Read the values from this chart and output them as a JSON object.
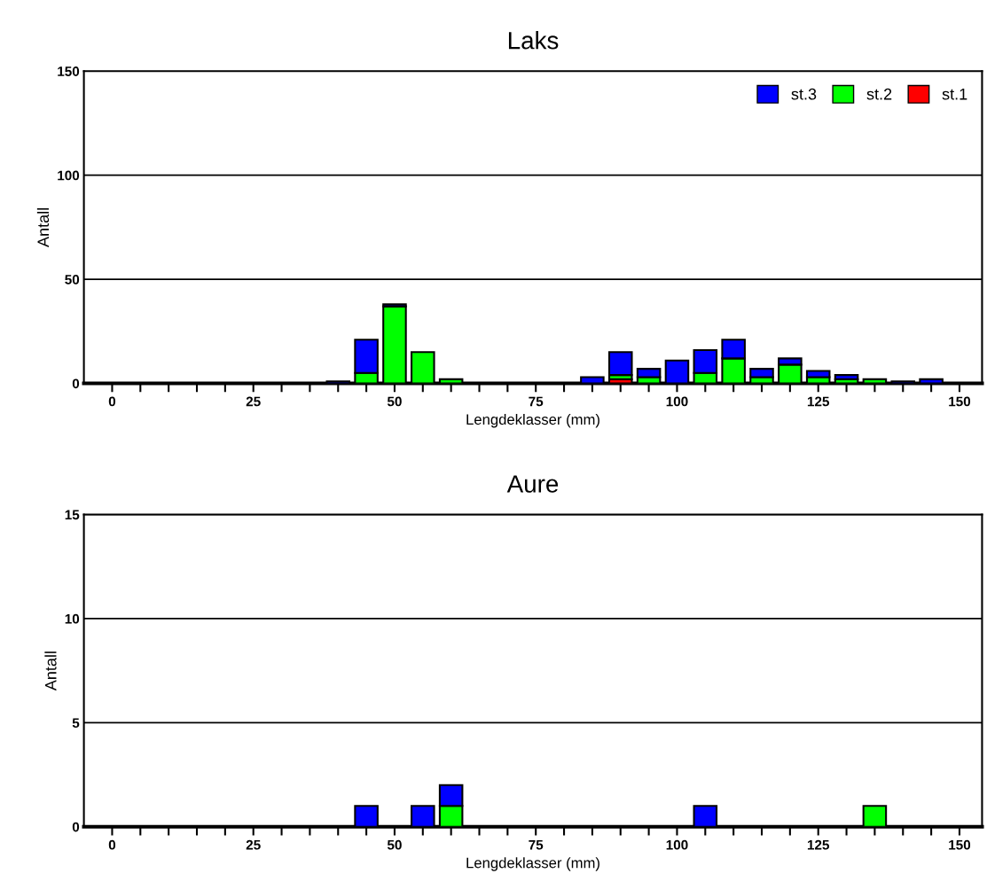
{
  "chart_data": [
    {
      "type": "bar",
      "title": "Laks",
      "xlabel": "Lengdeklasser (mm)",
      "ylabel": "Antall",
      "stacked": true,
      "x": [
        40,
        45,
        50,
        55,
        60,
        85,
        90,
        95,
        100,
        105,
        110,
        115,
        120,
        125,
        130,
        135,
        140,
        145
      ],
      "series": [
        {
          "name": "st.1",
          "color": "#ff0000",
          "values": [
            null,
            null,
            null,
            null,
            null,
            null,
            2,
            null,
            null,
            null,
            null,
            null,
            null,
            null,
            null,
            null,
            null,
            null
          ]
        },
        {
          "name": "st.2",
          "color": "#00ff00",
          "values": [
            null,
            5,
            37,
            15,
            2,
            null,
            2,
            3,
            null,
            5,
            12,
            3,
            9,
            3,
            2,
            2,
            null,
            null
          ]
        },
        {
          "name": "st.3",
          "color": "#0000ff",
          "values": [
            1,
            16,
            1,
            null,
            null,
            3,
            11,
            4,
            11,
            11,
            9,
            4,
            3,
            3,
            2,
            null,
            1,
            2
          ]
        }
      ],
      "xlim": [
        -5,
        154
      ],
      "ylim": [
        0,
        150
      ],
      "yticks": [
        0,
        50,
        100,
        150
      ],
      "xticks": [
        0,
        {
          "value": 5,
          "label": null
        },
        {
          "value": 10,
          "label": null
        },
        {
          "value": 15,
          "label": null
        },
        {
          "value": 20,
          "label": null
        },
        25,
        {
          "value": 30,
          "label": null
        },
        {
          "value": 35,
          "label": null
        },
        {
          "value": 40,
          "label": null
        },
        {
          "value": 45,
          "label": null
        },
        50,
        {
          "value": 55,
          "label": null
        },
        {
          "value": 60,
          "label": null
        },
        {
          "value": 65,
          "label": null
        },
        {
          "value": 70,
          "label": null
        },
        75,
        {
          "value": 80,
          "label": null
        },
        {
          "value": 85,
          "label": null
        },
        {
          "value": 90,
          "label": null
        },
        {
          "value": 95,
          "label": null
        },
        100,
        {
          "value": 105,
          "label": null
        },
        {
          "value": 110,
          "label": null
        },
        {
          "value": 115,
          "label": null
        },
        {
          "value": 120,
          "label": null
        },
        125,
        {
          "value": 130,
          "label": null
        },
        {
          "value": 135,
          "label": null
        },
        {
          "value": 140,
          "label": null
        },
        {
          "value": 145,
          "label": null
        },
        150
      ],
      "grid": "y",
      "legend": "top right"
    },
    {
      "type": "bar",
      "title": "Aure",
      "xlabel": "Lengdeklasser (mm)",
      "ylabel": "Antall",
      "stacked": true,
      "x": [
        45,
        55,
        60,
        105,
        135
      ],
      "series": [
        {
          "color": "#00ff00",
          "values": [
            null,
            null,
            1,
            null,
            1
          ]
        },
        {
          "color": "#0000ff",
          "values": [
            1,
            1,
            1,
            1,
            null
          ]
        }
      ],
      "xlim": [
        -5,
        154
      ],
      "ylim": [
        0,
        15
      ],
      "yticks": [
        0,
        5,
        10,
        15
      ],
      "xticks": [
        0,
        {
          "value": 5,
          "label": null
        },
        {
          "value": 10,
          "label": null
        },
        {
          "value": 15,
          "label": null
        },
        {
          "value": 20,
          "label": null
        },
        25,
        {
          "value": 30,
          "label": null
        },
        {
          "value": 35,
          "label": null
        },
        {
          "value": 40,
          "label": null
        },
        {
          "value": 45,
          "label": null
        },
        50,
        {
          "value": 55,
          "label": null
        },
        {
          "value": 60,
          "label": null
        },
        {
          "value": 65,
          "label": null
        },
        {
          "value": 70,
          "label": null
        },
        75,
        {
          "value": 80,
          "label": null
        },
        {
          "value": 85,
          "label": null
        },
        {
          "value": 90,
          "label": null
        },
        {
          "value": 95,
          "label": null
        },
        100,
        {
          "value": 105,
          "label": null
        },
        {
          "value": 110,
          "label": null
        },
        {
          "value": 115,
          "label": null
        },
        {
          "value": 120,
          "label": null
        },
        125,
        {
          "value": 130,
          "label": null
        },
        {
          "value": 135,
          "label": null
        },
        {
          "value": 140,
          "label": null
        },
        {
          "value": 145,
          "label": null
        },
        150
      ],
      "grid": "y",
      "legend": false
    }
  ]
}
